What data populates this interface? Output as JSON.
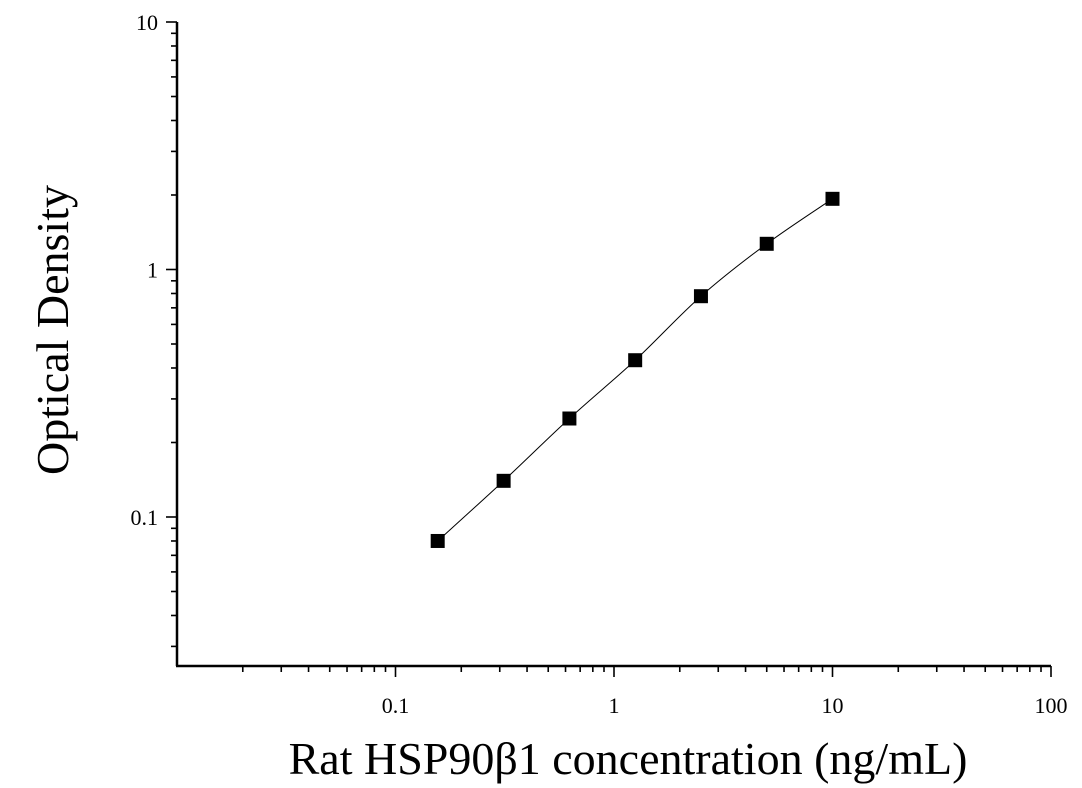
{
  "chart_data": {
    "type": "scatter",
    "title": "",
    "xlabel": "Rat HSP90β1 concentration (ng/mL)",
    "ylabel": "Optical Density",
    "xscale": "log",
    "yscale": "log",
    "xlim": [
      0.01,
      100
    ],
    "ylim": [
      0.025,
      10
    ],
    "x_ticks": [
      "0.1",
      "1",
      "10",
      "100"
    ],
    "y_ticks": [
      "0.1",
      "1",
      "10"
    ],
    "x_tick_values": [
      0.1,
      1,
      10,
      100
    ],
    "y_tick_values": [
      0.1,
      1,
      10
    ],
    "grid": false,
    "legend": "none",
    "fitted_curve": true,
    "marker": "square",
    "color": "#000000",
    "series": [
      {
        "x": [
          0.156,
          0.3125,
          0.625,
          1.25,
          2.5,
          5,
          10
        ],
        "y": [
          0.08,
          0.14,
          0.25,
          0.43,
          0.78,
          1.27,
          1.93
        ]
      }
    ]
  }
}
